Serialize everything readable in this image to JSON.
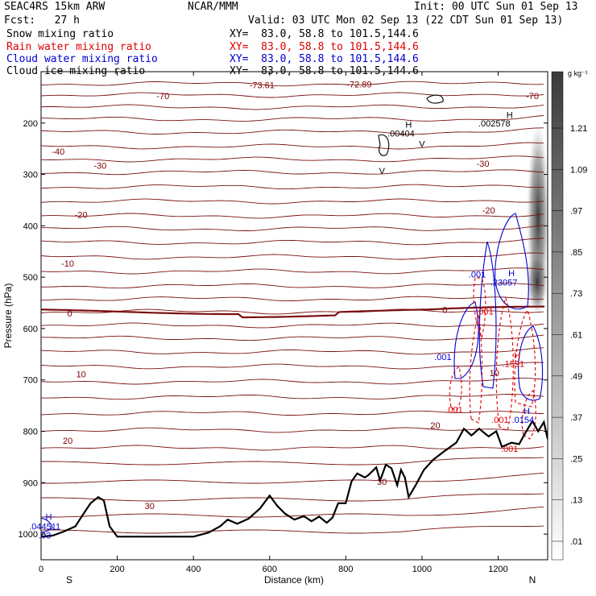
{
  "header": {
    "left": [
      "SEAC4RS 15km ARW",
      "Fcst:   27 h"
    ],
    "center": "NCAR/MMM",
    "init": "Init: 00 UTC Sun 01 Sep 13",
    "valid": "Valid: 03 UTC Mon 02 Sep 13 (22 CDT Sun 01 Sep 13)",
    "fields": [
      {
        "label": "Snow mixing ratio",
        "xy": "XY=  83.0, 58.8 to 101.5,144.6",
        "color": "#000000"
      },
      {
        "label": "Rain water mixing ratio",
        "xy": "XY=  83.0, 58.8 to 101.5,144.6",
        "color": "#e00000"
      },
      {
        "label": "Cloud water mixing ratio",
        "xy": "XY=  83.0, 58.8 to 101.5,144.6",
        "color": "#0000d0"
      },
      {
        "label": "Cloud ice mixing ratio",
        "xy": "XY=  83.0, 58.8 to 101.5,144.6",
        "color": "#000000"
      }
    ]
  },
  "chart_data": {
    "type": "cross-section",
    "xlabel": "Distance (km)",
    "ylabel": "Pressure (hPa)",
    "xlim": [
      0,
      1330
    ],
    "ylim": [
      1050,
      100
    ],
    "x_ticks": [
      0,
      200,
      400,
      600,
      800,
      1000,
      1200
    ],
    "y_ticks": [
      200,
      300,
      400,
      500,
      600,
      700,
      800,
      900,
      1000
    ],
    "x_end_labels": {
      "left": "S",
      "right": "N"
    },
    "colorbar": {
      "unit": "g kg⁻¹",
      "levels": [
        ".01",
        ".13",
        ".25",
        ".37",
        ".49",
        ".61",
        ".73",
        ".85",
        ".97",
        "1.09",
        "1.21"
      ]
    },
    "isotherm_labels": [
      {
        "text": "-70",
        "km": 320,
        "p": 147,
        "color": "#800000"
      },
      {
        "text": "-70",
        "km": 1290,
        "p": 147,
        "color": "#800000"
      },
      {
        "text": "-73.61",
        "km": 580,
        "p": 126,
        "color": "#800000"
      },
      {
        "text": "-72.89",
        "km": 835,
        "p": 124,
        "color": "#800000"
      },
      {
        "text": "-40",
        "km": 45,
        "p": 255,
        "color": "#800000"
      },
      {
        "text": "-30",
        "km": 155,
        "p": 283,
        "color": "#800000"
      },
      {
        "text": "-30",
        "km": 1160,
        "p": 279,
        "color": "#800000"
      },
      {
        "text": "-20",
        "km": 105,
        "p": 378,
        "color": "#800000"
      },
      {
        "text": "-20",
        "km": 1175,
        "p": 370,
        "color": "#800000"
      },
      {
        "text": "-10",
        "km": 70,
        "p": 473,
        "color": "#800000"
      },
      {
        "text": "0",
        "km": 75,
        "p": 570,
        "color": "#800000"
      },
      {
        "text": "0",
        "km": 1060,
        "p": 563,
        "color": "#800000"
      },
      {
        "text": "10",
        "km": 105,
        "p": 689,
        "color": "#800000"
      },
      {
        "text": "10",
        "km": 1190,
        "p": 686,
        "color": "#800000"
      },
      {
        "text": "20",
        "km": 70,
        "p": 818,
        "color": "#800000"
      },
      {
        "text": "20",
        "km": 1035,
        "p": 788,
        "color": "#800000"
      },
      {
        "text": "30",
        "km": 285,
        "p": 945,
        "color": "#800000"
      },
      {
        "text": "30",
        "km": 895,
        "p": 898,
        "color": "#800000"
      }
    ],
    "field_labels": [
      {
        "text": "H",
        "km": 1230,
        "p": 184,
        "color": "#000000"
      },
      {
        "text": ".002578",
        "km": 1190,
        "p": 200,
        "color": "#000000"
      },
      {
        "text": "H",
        "km": 965,
        "p": 203,
        "color": "#000000"
      },
      {
        "text": ".00404",
        "km": 945,
        "p": 220,
        "color": "#000000"
      },
      {
        "text": "V",
        "km": 1000,
        "p": 240,
        "color": "#000000"
      },
      {
        "text": "V",
        "km": 895,
        "p": 293,
        "color": "#000000"
      },
      {
        "text": ".001",
        "km": 1145,
        "p": 494,
        "color": "#0000d0"
      },
      {
        "text": "H",
        "km": 1235,
        "p": 492,
        "color": "#0000d0"
      },
      {
        "text": ".23057",
        "km": 1215,
        "p": 510,
        "color": "#0000d0"
      },
      {
        "text": ".001",
        "km": 1055,
        "p": 655,
        "color": "#0000d0"
      },
      {
        "text": ".001",
        "km": 1165,
        "p": 566,
        "color": "#e00000"
      },
      {
        "text": "H",
        "km": 1250,
        "p": 652,
        "color": "#e00000"
      },
      {
        "text": ".1591",
        "km": 1240,
        "p": 668,
        "color": "#e00000"
      },
      {
        "text": ".001",
        "km": 1085,
        "p": 758,
        "color": "#e00000"
      },
      {
        "text": ".001",
        "km": 1205,
        "p": 777,
        "color": "#e00000"
      },
      {
        "text": ".001",
        "km": 1230,
        "p": 834,
        "color": "#e00000"
      },
      {
        "text": "H",
        "km": 1275,
        "p": 760,
        "color": "#0000d0"
      },
      {
        "text": ".0154",
        "km": 1265,
        "p": 777,
        "color": "#0000d0"
      },
      {
        "text": "H",
        "km": 20,
        "p": 966,
        "color": "#0000d0"
      },
      {
        "text": ".044511",
        "km": 10,
        "p": 985,
        "color": "#0000d0"
      },
      {
        "text": ".03",
        "km": 10,
        "p": 1002,
        "color": "#0000d0"
      }
    ],
    "terrain": [
      [
        0,
        1005
      ],
      [
        30,
        1003
      ],
      [
        60,
        995
      ],
      [
        90,
        985
      ],
      [
        110,
        962
      ],
      [
        130,
        940
      ],
      [
        150,
        928
      ],
      [
        165,
        935
      ],
      [
        180,
        985
      ],
      [
        200,
        1005
      ],
      [
        400,
        1005
      ],
      [
        440,
        997
      ],
      [
        470,
        985
      ],
      [
        490,
        972
      ],
      [
        515,
        980
      ],
      [
        545,
        970
      ],
      [
        575,
        950
      ],
      [
        600,
        925
      ],
      [
        620,
        945
      ],
      [
        640,
        960
      ],
      [
        665,
        972
      ],
      [
        690,
        965
      ],
      [
        710,
        975
      ],
      [
        730,
        966
      ],
      [
        750,
        978
      ],
      [
        765,
        968
      ],
      [
        780,
        940
      ],
      [
        800,
        940
      ],
      [
        815,
        898
      ],
      [
        830,
        882
      ],
      [
        850,
        890
      ],
      [
        860,
        885
      ],
      [
        880,
        870
      ],
      [
        890,
        896
      ],
      [
        905,
        865
      ],
      [
        920,
        872
      ],
      [
        935,
        905
      ],
      [
        945,
        875
      ],
      [
        955,
        890
      ],
      [
        965,
        928
      ],
      [
        985,
        903
      ],
      [
        1005,
        875
      ],
      [
        1030,
        855
      ],
      [
        1060,
        838
      ],
      [
        1090,
        822
      ],
      [
        1110,
        795
      ],
      [
        1130,
        808
      ],
      [
        1150,
        795
      ],
      [
        1175,
        810
      ],
      [
        1195,
        800
      ],
      [
        1210,
        830
      ],
      [
        1235,
        822
      ],
      [
        1255,
        825
      ],
      [
        1270,
        805
      ],
      [
        1290,
        780
      ],
      [
        1305,
        800
      ],
      [
        1320,
        782
      ],
      [
        1330,
        815
      ]
    ]
  }
}
